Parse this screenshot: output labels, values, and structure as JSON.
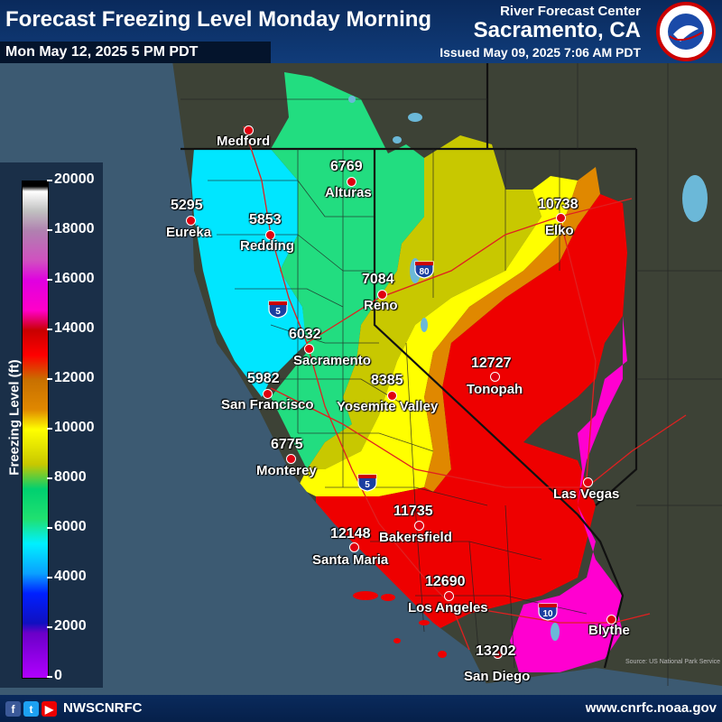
{
  "header": {
    "title": "Forecast Freezing Level Monday Morning",
    "valid_time": "Mon May 12, 2025 5 PM PDT",
    "org_line1": "River Forecast Center",
    "org_line2": "Sacramento, CA",
    "issued": "Issued May 09, 2025 7:06 AM PDT",
    "logo_text": "NATIONAL WEATHER SERVICE"
  },
  "legend": {
    "title": "Freezing Level (ft)",
    "ticks": [
      "20000",
      "18000",
      "16000",
      "14000",
      "12000",
      "10000",
      "8000",
      "6000",
      "4000",
      "2000",
      "0"
    ]
  },
  "cities": [
    {
      "name": "Medford",
      "value": ""
    },
    {
      "name": "Alturas",
      "value": "6769"
    },
    {
      "name": "Eureka",
      "value": "5295"
    },
    {
      "name": "Redding",
      "value": "5853"
    },
    {
      "name": "Elko",
      "value": "10738"
    },
    {
      "name": "Reno",
      "value": "7084"
    },
    {
      "name": "Sacramento",
      "value": "6032"
    },
    {
      "name": "Tonopah",
      "value": "12727"
    },
    {
      "name": "San Francisco",
      "value": "5982"
    },
    {
      "name": "Yosemite Valley",
      "value": "8385"
    },
    {
      "name": "Monterey",
      "value": "6775"
    },
    {
      "name": "Las Vegas",
      "value": ""
    },
    {
      "name": "Bakersfield",
      "value": "11735"
    },
    {
      "name": "Santa Maria",
      "value": "12148"
    },
    {
      "name": "Los Angeles",
      "value": "12690"
    },
    {
      "name": "Blythe",
      "value": ""
    },
    {
      "name": "San Diego",
      "value": "13202"
    }
  ],
  "highways": [
    "5",
    "80",
    "5",
    "10"
  ],
  "footer": {
    "social_handle": "NWSCNRFC",
    "website": "www.cnrfc.noaa.gov",
    "source": "Source: US National Park Service",
    "social_icons": [
      "facebook-icon",
      "twitter-icon",
      "youtube-icon"
    ]
  }
}
